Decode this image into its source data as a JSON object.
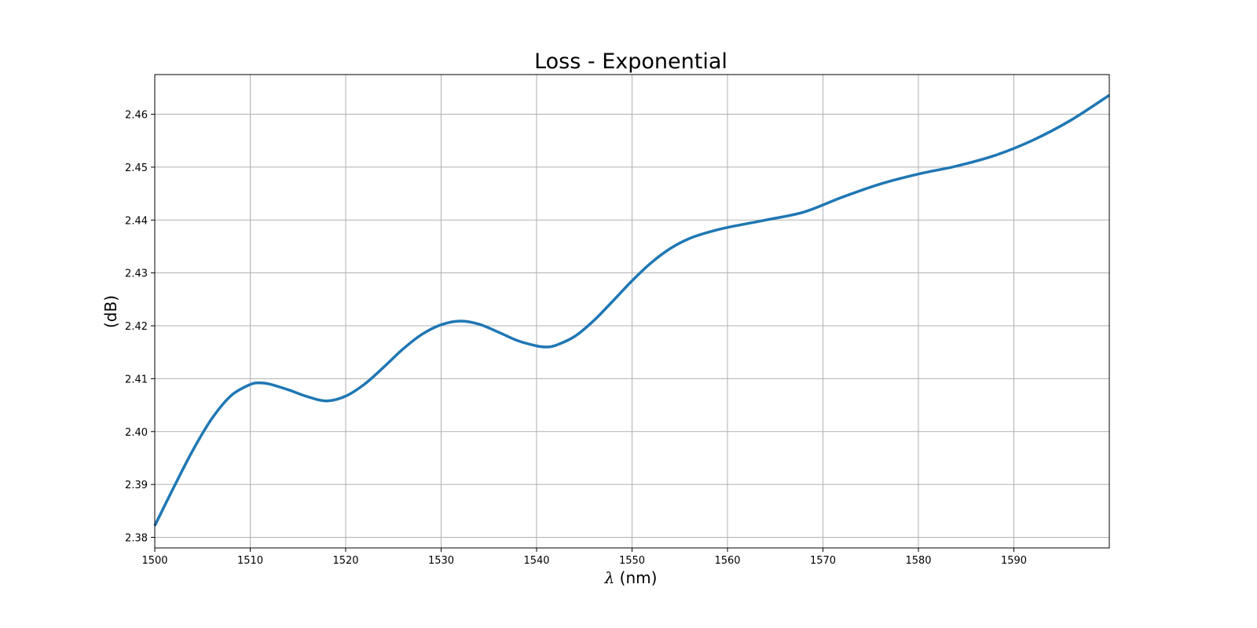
{
  "chart_data": {
    "type": "line",
    "title": "Loss - Exponential",
    "xlabel_symbol": "λ",
    "xlabel_unit": " (nm)",
    "ylabel": "(dB)",
    "xlim": [
      1500,
      1600
    ],
    "ylim": [
      2.378,
      2.4675
    ],
    "xticks": [
      1500,
      1510,
      1520,
      1530,
      1540,
      1550,
      1560,
      1570,
      1580,
      1590
    ],
    "xtick_labels": [
      "1500",
      "1510",
      "1520",
      "1530",
      "1540",
      "1550",
      "1560",
      "1570",
      "1580",
      "1590"
    ],
    "yticks": [
      2.38,
      2.39,
      2.4,
      2.41,
      2.42,
      2.43,
      2.44,
      2.45,
      2.46
    ],
    "ytick_labels": [
      "2.38",
      "2.39",
      "2.40",
      "2.41",
      "2.42",
      "2.43",
      "2.44",
      "2.45",
      "2.46"
    ],
    "grid": true,
    "colors": {
      "line": "#1f77b4",
      "grid": "#b0b0b0",
      "axes": "#000000"
    },
    "series": [
      {
        "x": [
          1500,
          1502,
          1504,
          1506,
          1508,
          1510,
          1511,
          1512,
          1514,
          1516,
          1518,
          1520,
          1522,
          1524,
          1526,
          1528,
          1530,
          1532,
          1534,
          1536,
          1538,
          1540,
          1541,
          1542,
          1544,
          1546,
          1548,
          1550,
          1552,
          1554,
          1556,
          1558,
          1560,
          1564,
          1568,
          1572,
          1576,
          1580,
          1584,
          1588,
          1592,
          1596,
          1600
        ],
        "y": [
          2.3822,
          2.3895,
          2.3965,
          2.4025,
          2.4068,
          2.4089,
          2.4092,
          2.409,
          2.4079,
          2.4066,
          2.4058,
          2.4067,
          2.409,
          2.4122,
          2.4156,
          2.4184,
          2.4202,
          2.4209,
          2.4203,
          2.4188,
          2.4172,
          2.4162,
          2.416,
          2.4163,
          2.418,
          2.421,
          2.4247,
          2.4285,
          2.4319,
          2.4346,
          2.4365,
          2.4377,
          2.4386,
          2.44,
          2.4415,
          2.4443,
          2.4468,
          2.4487,
          2.4502,
          2.4522,
          2.4551,
          2.4589,
          2.4636
        ]
      }
    ]
  }
}
